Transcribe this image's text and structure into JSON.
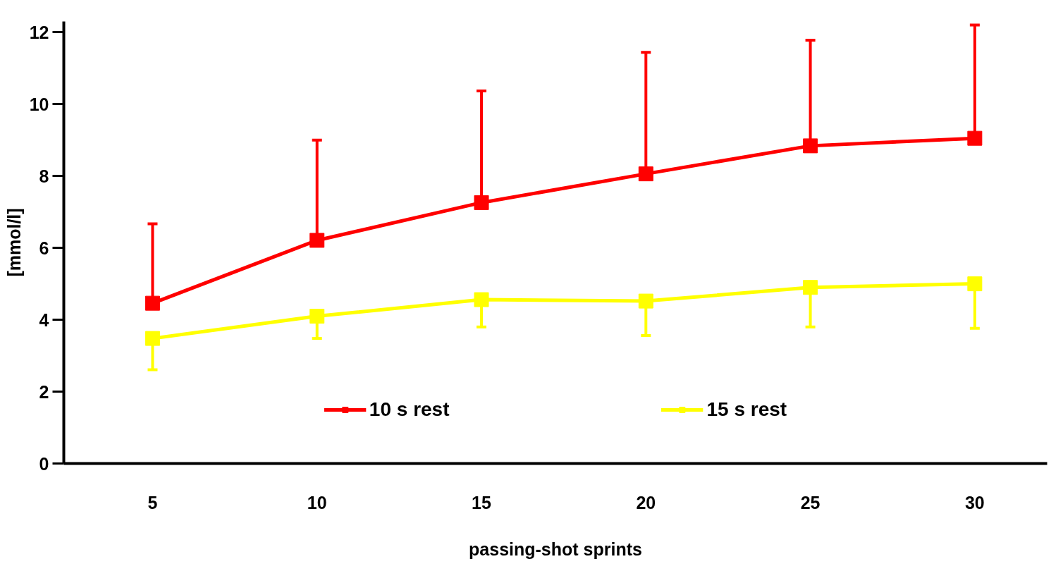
{
  "chart_data": {
    "type": "line",
    "xlabel": "passing-shot sprints",
    "ylabel": "[mmol/l]",
    "x": [
      5,
      10,
      15,
      20,
      25,
      30
    ],
    "series": [
      {
        "name": "10 s rest",
        "color": "#ff0000",
        "values": [
          4.46,
          6.21,
          7.26,
          8.06,
          8.84,
          9.05
        ],
        "errors": [
          [
            4.46,
            6.67
          ],
          [
            6.21,
            9.0
          ],
          [
            7.26,
            10.37
          ],
          [
            8.06,
            11.44
          ],
          [
            8.84,
            11.78
          ],
          [
            9.05,
            12.2
          ]
        ]
      },
      {
        "name": "15 s rest",
        "color": "#ffff00",
        "values": [
          3.48,
          4.1,
          4.56,
          4.52,
          4.9,
          5.0
        ],
        "errors": [
          [
            2.61,
            3.48
          ],
          [
            3.48,
            4.1
          ],
          [
            3.8,
            4.56
          ],
          [
            3.56,
            4.52
          ],
          [
            3.8,
            4.9
          ],
          [
            3.76,
            5.0
          ]
        ]
      }
    ],
    "xlim": [
      2.3,
      32.2
    ],
    "ylim": [
      0,
      12.3
    ],
    "xticks": [
      5,
      10,
      15,
      20,
      25,
      30
    ],
    "yticks": [
      0,
      2,
      4,
      6,
      8,
      10,
      12
    ],
    "marker": "square",
    "line_style": "solid",
    "grid": false,
    "legend": "bottom"
  }
}
